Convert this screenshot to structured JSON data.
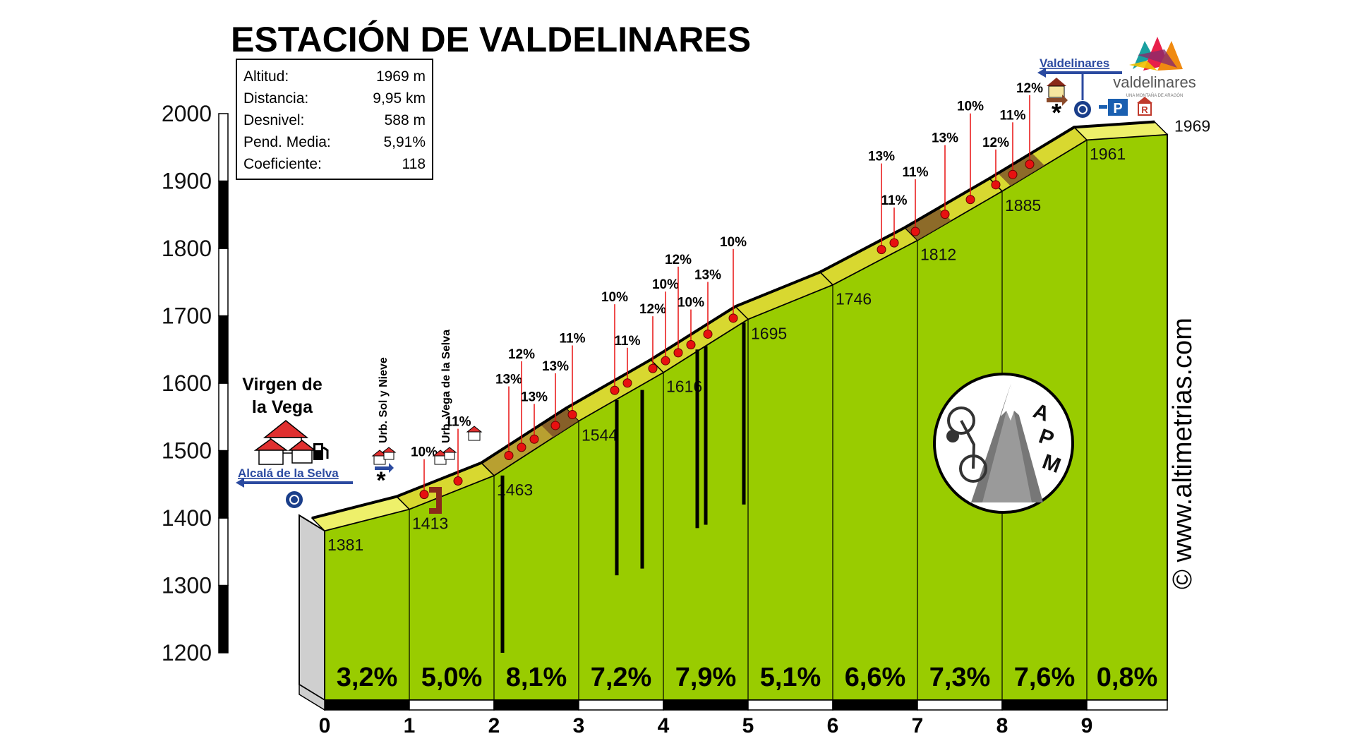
{
  "title": "ESTACIÓN DE VALDELINARES",
  "stats": [
    {
      "label": "Altitud:",
      "value": "1969 m"
    },
    {
      "label": "Distancia:",
      "value": "9,95 km"
    },
    {
      "label": "Desnivel:",
      "value": "588 m"
    },
    {
      "label": "Pend. Media:",
      "value": "5,91%"
    },
    {
      "label": "Coeficiente:",
      "value": "118"
    }
  ],
  "watermark": "© www.altimetrias.com",
  "logo": {
    "text": "valdelinares",
    "subtext": "UNA MONTAÑA DE ARAGÓN"
  },
  "badge": {
    "text": [
      "A",
      "P",
      "M"
    ]
  },
  "places": {
    "start": "Virgen de la Vega",
    "start_lines": [
      "Virgen de",
      "la Vega"
    ],
    "urb1": "Urb. Sol y Nieve",
    "urb2": "Urb. Vega de la Selva",
    "left_dir": "Alcalá de la Selva",
    "right_dir": "Valdelinares"
  },
  "colors": {
    "fill": "#99cc00",
    "road": "#d8d830",
    "road_dark": "#7a5028",
    "marker": "#e81010",
    "axis_bar": "#000000"
  },
  "chart_data": {
    "type": "area",
    "x_unit": "km",
    "y_unit": "m",
    "xlim": [
      0,
      9.95
    ],
    "ylim": [
      1200,
      2000
    ],
    "y_ticks": [
      1200,
      1300,
      1400,
      1500,
      1600,
      1700,
      1800,
      1900,
      2000
    ],
    "x_ticks": [
      0,
      1,
      2,
      3,
      4,
      5,
      6,
      7,
      8,
      9
    ],
    "km_elevations": [
      {
        "km": 0,
        "elev": 1381
      },
      {
        "km": 1,
        "elev": 1413
      },
      {
        "km": 2,
        "elev": 1463
      },
      {
        "km": 3,
        "elev": 1544
      },
      {
        "km": 4,
        "elev": 1616
      },
      {
        "km": 5,
        "elev": 1695
      },
      {
        "km": 6,
        "elev": 1746
      },
      {
        "km": 7,
        "elev": 1812
      },
      {
        "km": 8,
        "elev": 1885
      },
      {
        "km": 9,
        "elev": 1961
      },
      {
        "km": 9.95,
        "elev": 1969
      }
    ],
    "segment_gradients": [
      "3,2%",
      "5,0%",
      "8,1%",
      "7,2%",
      "7,9%",
      "5,1%",
      "6,6%",
      "7,3%",
      "7,6%",
      "0,8%"
    ],
    "steep_markers": [
      {
        "km": 1.25,
        "label": "10%"
      },
      {
        "km": 1.65,
        "label": "11%"
      },
      {
        "km": 2.25,
        "label": "13%"
      },
      {
        "km": 2.4,
        "label": "12%"
      },
      {
        "km": 2.55,
        "label": "13%"
      },
      {
        "km": 2.8,
        "label": "13%"
      },
      {
        "km": 3.0,
        "label": "11%"
      },
      {
        "km": 3.5,
        "label": "10%"
      },
      {
        "km": 3.65,
        "label": "11%"
      },
      {
        "km": 3.95,
        "label": "12%"
      },
      {
        "km": 4.1,
        "label": "10%"
      },
      {
        "km": 4.25,
        "label": "12%"
      },
      {
        "km": 4.4,
        "label": "10%"
      },
      {
        "km": 4.6,
        "label": "13%"
      },
      {
        "km": 4.9,
        "label": "10%"
      },
      {
        "km": 6.65,
        "label": "13%"
      },
      {
        "km": 6.8,
        "label": "11%"
      },
      {
        "km": 7.05,
        "label": "11%"
      },
      {
        "km": 7.4,
        "label": "13%"
      },
      {
        "km": 7.7,
        "label": "10%"
      },
      {
        "km": 8.0,
        "label": "12%"
      },
      {
        "km": 8.2,
        "label": "11%"
      },
      {
        "km": 8.4,
        "label": "12%"
      }
    ]
  }
}
